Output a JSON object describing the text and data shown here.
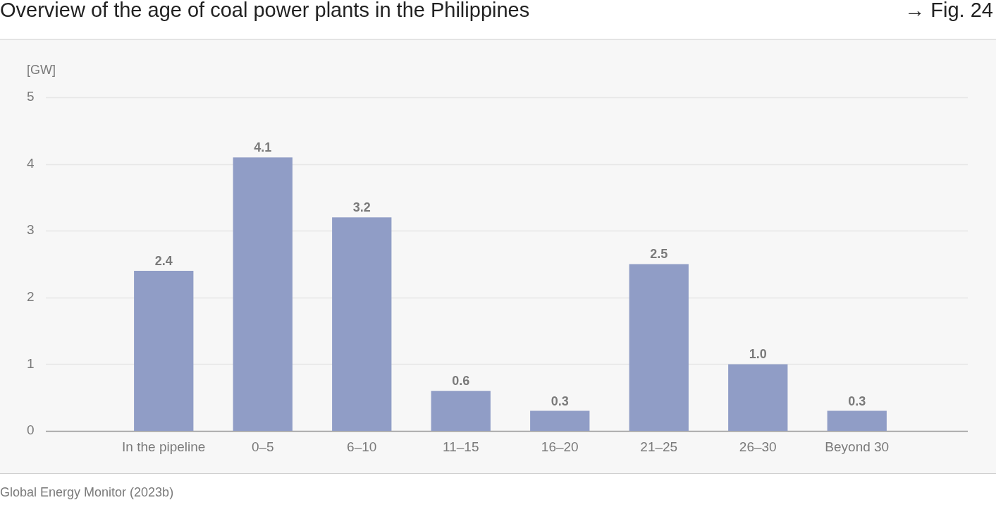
{
  "chart_data": {
    "type": "bar",
    "title": "Overview of the age of coal power plants in the Philippines",
    "ylabel": "[GW]",
    "categories": [
      "In the pipeline",
      "0–5",
      "6–10",
      "11–15",
      "16–20",
      "21–25",
      "26–30",
      "Beyond 30"
    ],
    "values": [
      2.4,
      4.1,
      3.2,
      0.6,
      0.3,
      2.5,
      1.0,
      0.3
    ],
    "color": "#909dc6",
    "value_labels": [
      "2.4",
      "4.1",
      "3.2",
      "0.6",
      "0.3",
      "2.5",
      "1.0",
      "0.3"
    ],
    "ylim": [
      0,
      5
    ],
    "yticks": [
      0,
      1,
      2,
      3,
      4,
      5
    ],
    "grid": "y",
    "legend": false,
    "annotations": [
      "→ Fig. 24",
      "Global Energy Monitor (2023b)"
    ]
  }
}
